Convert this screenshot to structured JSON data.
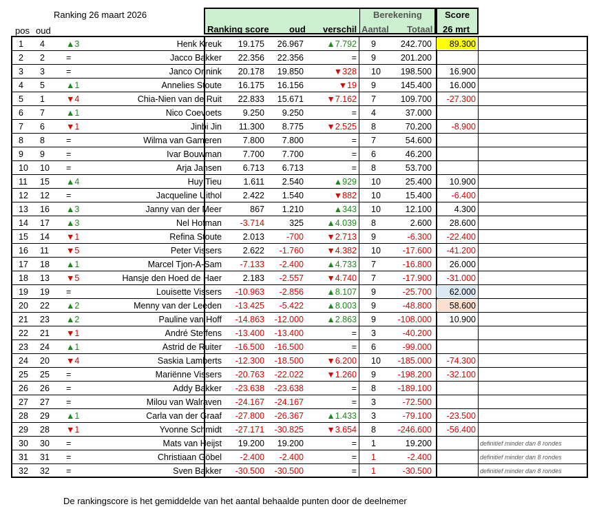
{
  "header": {
    "title": "Ranking  26 maart 2026",
    "pos": "pos",
    "oud": "oud",
    "ranking_score": "Ranking score",
    "oud2": "oud",
    "verschil": "verschil",
    "berekening": "Berekening",
    "aantal": "Aantal",
    "totaal": "Totaal",
    "score": "Score",
    "score_date": "26 mrt"
  },
  "colors": {
    "header_bg": "#ccefd0",
    "yellow": "#ffff00",
    "blue": "#dbe9f7",
    "peach": "#fbe0d0",
    "red": "#e00000",
    "green": "#1a8a1a"
  },
  "rows": [
    {
      "pos": "1",
      "oud": "4",
      "move": "▲3",
      "dir": "up",
      "name": "Henk Kreuk",
      "score": "26.967",
      "old": "19.175",
      "diff": "▲7.792",
      "diffdir": "up",
      "aantal": "9",
      "totaal": "242.700",
      "s26": "89.300",
      "hl": "yellow",
      "note": ""
    },
    {
      "pos": "2",
      "oud": "2",
      "move": "=",
      "dir": "eq",
      "name": "Jacco Bakker",
      "score": "22.356",
      "old": "22.356",
      "diff": "=",
      "diffdir": "eq",
      "aantal": "9",
      "totaal": "201.200",
      "s26": "",
      "hl": "",
      "note": ""
    },
    {
      "pos": "3",
      "oud": "3",
      "move": "=",
      "dir": "eq",
      "name": "Janco Onnink",
      "score": "19.850",
      "old": "20.178",
      "diff": "▼328",
      "diffdir": "down",
      "aantal": "10",
      "totaal": "198.500",
      "s26": "16.900",
      "hl": "",
      "note": ""
    },
    {
      "pos": "4",
      "oud": "5",
      "move": "▲1",
      "dir": "up",
      "name": "Annelies Stoute",
      "score": "16.156",
      "old": "16.175",
      "diff": "▼19",
      "diffdir": "down",
      "aantal": "9",
      "totaal": "145.400",
      "s26": "16.000",
      "hl": "",
      "note": ""
    },
    {
      "pos": "5",
      "oud": "1",
      "move": "▼4",
      "dir": "down",
      "name": "Chia-Nien van de Ruit",
      "score": "15.671",
      "old": "22.833",
      "diff": "▼7.162",
      "diffdir": "down",
      "aantal": "7",
      "totaal": "109.700",
      "s26": "-27.300",
      "hl": "",
      "note": ""
    },
    {
      "pos": "6",
      "oud": "7",
      "move": "▲1",
      "dir": "up",
      "name": "Nico Coevoets",
      "score": "9.250",
      "old": "9.250",
      "diff": "=",
      "diffdir": "eq",
      "aantal": "4",
      "totaal": "37.000",
      "s26": "",
      "hl": "",
      "note": ""
    },
    {
      "pos": "7",
      "oud": "6",
      "move": "▼1",
      "dir": "down",
      "name": "Jinbi Jin",
      "score": "8.775",
      "old": "11.300",
      "diff": "▼2.525",
      "diffdir": "down",
      "aantal": "8",
      "totaal": "70.200",
      "s26": "-8.900",
      "hl": "",
      "note": ""
    },
    {
      "pos": "8",
      "oud": "8",
      "move": "=",
      "dir": "eq",
      "name": "Wilma van Gameren",
      "score": "7.800",
      "old": "7.800",
      "diff": "=",
      "diffdir": "eq",
      "aantal": "7",
      "totaal": "54.600",
      "s26": "",
      "hl": "",
      "note": ""
    },
    {
      "pos": "9",
      "oud": "9",
      "move": "=",
      "dir": "eq",
      "name": "Ivar Bouwman",
      "score": "7.700",
      "old": "7.700",
      "diff": "=",
      "diffdir": "eq",
      "aantal": "6",
      "totaal": "46.200",
      "s26": "",
      "hl": "",
      "note": ""
    },
    {
      "pos": "10",
      "oud": "10",
      "move": "=",
      "dir": "eq",
      "name": "Arja Jansen",
      "score": "6.713",
      "old": "6.713",
      "diff": "=",
      "diffdir": "eq",
      "aantal": "8",
      "totaal": "53.700",
      "s26": "",
      "hl": "",
      "note": ""
    },
    {
      "pos": "11",
      "oud": "15",
      "move": "▲4",
      "dir": "up",
      "name": "Huy Tieu",
      "score": "2.540",
      "old": "1.611",
      "diff": "▲929",
      "diffdir": "up",
      "aantal": "10",
      "totaal": "25.400",
      "s26": "10.900",
      "hl": "",
      "note": ""
    },
    {
      "pos": "12",
      "oud": "12",
      "move": "=",
      "dir": "eq",
      "name": "Jacqueline Uithol",
      "score": "1.540",
      "old": "2.422",
      "diff": "▼882",
      "diffdir": "down",
      "aantal": "10",
      "totaal": "15.400",
      "s26": "-6.400",
      "hl": "",
      "note": ""
    },
    {
      "pos": "13",
      "oud": "16",
      "move": "▲3",
      "dir": "up",
      "name": "Janny van der Meer",
      "score": "1.210",
      "old": "867",
      "diff": "▲343",
      "diffdir": "up",
      "aantal": "10",
      "totaal": "12.100",
      "s26": "4.300",
      "hl": "",
      "note": ""
    },
    {
      "pos": "14",
      "oud": "17",
      "move": "▲3",
      "dir": "up",
      "name": "Nel Hofman",
      "score": "325",
      "old": "-3.714",
      "diff": "▲4.039",
      "diffdir": "up",
      "aantal": "8",
      "totaal": "2.600",
      "s26": "28.600",
      "hl": "",
      "note": ""
    },
    {
      "pos": "15",
      "oud": "14",
      "move": "▼1",
      "dir": "down",
      "name": "Refina Stoute",
      "score": "-700",
      "old": "2.013",
      "diff": "▼2.713",
      "diffdir": "down",
      "aantal": "9",
      "totaal": "-6.300",
      "s26": "-22.400",
      "hl": "",
      "note": ""
    },
    {
      "pos": "16",
      "oud": "11",
      "move": "▼5",
      "dir": "down",
      "name": "Peter Vissers",
      "score": "-1.760",
      "old": "2.622",
      "diff": "▼4.382",
      "diffdir": "down",
      "aantal": "10",
      "totaal": "-17.600",
      "s26": "-41.200",
      "hl": "",
      "note": ""
    },
    {
      "pos": "17",
      "oud": "18",
      "move": "▲1",
      "dir": "up",
      "name": "Marcel Tjon-A-Sam",
      "score": "-2.400",
      "old": "-7.133",
      "diff": "▲4.733",
      "diffdir": "up",
      "aantal": "7",
      "totaal": "-16.800",
      "s26": "26.000",
      "hl": "",
      "note": ""
    },
    {
      "pos": "18",
      "oud": "13",
      "move": "▼5",
      "dir": "down",
      "name": "Hansje den Hoed de Haer",
      "score": "-2.557",
      "old": "2.183",
      "diff": "▼4.740",
      "diffdir": "down",
      "aantal": "7",
      "totaal": "-17.900",
      "s26": "-31.000",
      "hl": "",
      "note": ""
    },
    {
      "pos": "19",
      "oud": "19",
      "move": "=",
      "dir": "eq",
      "name": "Louisette Vissers",
      "score": "-2.856",
      "old": "-10.963",
      "diff": "▲8.107",
      "diffdir": "up",
      "aantal": "9",
      "totaal": "-25.700",
      "s26": "62.000",
      "hl": "blue",
      "note": ""
    },
    {
      "pos": "20",
      "oud": "22",
      "move": "▲2",
      "dir": "up",
      "name": "Menny van der Leeden",
      "score": "-5.422",
      "old": "-13.425",
      "diff": "▲8.003",
      "diffdir": "up",
      "aantal": "9",
      "totaal": "-48.800",
      "s26": "58.600",
      "hl": "peach",
      "note": ""
    },
    {
      "pos": "21",
      "oud": "23",
      "move": "▲2",
      "dir": "up",
      "name": "Pauline van Hoff",
      "score": "-12.000",
      "old": "-14.863",
      "diff": "▲2.863",
      "diffdir": "up",
      "aantal": "9",
      "totaal": "-108.000",
      "s26": "10.900",
      "hl": "",
      "note": ""
    },
    {
      "pos": "22",
      "oud": "21",
      "move": "▼1",
      "dir": "down",
      "name": "André Steffens",
      "score": "-13.400",
      "old": "-13.400",
      "diff": "=",
      "diffdir": "eq",
      "aantal": "3",
      "totaal": "-40.200",
      "s26": "",
      "hl": "",
      "note": ""
    },
    {
      "pos": "23",
      "oud": "24",
      "move": "▲1",
      "dir": "up",
      "name": "Astrid de Ruiter",
      "score": "-16.500",
      "old": "-16.500",
      "diff": "=",
      "diffdir": "eq",
      "aantal": "6",
      "totaal": "-99.000",
      "s26": "",
      "hl": "",
      "note": ""
    },
    {
      "pos": "24",
      "oud": "20",
      "move": "▼4",
      "dir": "down",
      "name": "Saskia Lamberts",
      "score": "-18.500",
      "old": "-12.300",
      "diff": "▼6.200",
      "diffdir": "down",
      "aantal": "10",
      "totaal": "-185.000",
      "s26": "-74.300",
      "hl": "",
      "note": ""
    },
    {
      "pos": "25",
      "oud": "25",
      "move": "=",
      "dir": "eq",
      "name": "Mariënne Vissers",
      "score": "-22.022",
      "old": "-20.763",
      "diff": "▼1.260",
      "diffdir": "down",
      "aantal": "9",
      "totaal": "-198.200",
      "s26": "-32.100",
      "hl": "",
      "note": ""
    },
    {
      "pos": "26",
      "oud": "26",
      "move": "=",
      "dir": "eq",
      "name": "Addy Bakker",
      "score": "-23.638",
      "old": "-23.638",
      "diff": "=",
      "diffdir": "eq",
      "aantal": "8",
      "totaal": "-189.100",
      "s26": "",
      "hl": "",
      "note": ""
    },
    {
      "pos": "27",
      "oud": "27",
      "move": "=",
      "dir": "eq",
      "name": "Milou van Walraven",
      "score": "-24.167",
      "old": "-24.167",
      "diff": "=",
      "diffdir": "eq",
      "aantal": "3",
      "totaal": "-72.500",
      "s26": "",
      "hl": "",
      "note": ""
    },
    {
      "pos": "28",
      "oud": "29",
      "move": "▲1",
      "dir": "up",
      "name": "Carla van der Graaf",
      "score": "-26.367",
      "old": "-27.800",
      "diff": "▲1.433",
      "diffdir": "up",
      "aantal": "3",
      "totaal": "-79.100",
      "s26": "-23.500",
      "hl": "",
      "note": ""
    },
    {
      "pos": "29",
      "oud": "28",
      "move": "▼1",
      "dir": "down",
      "name": "Yvonne Schmidt",
      "score": "-30.825",
      "old": "-27.171",
      "diff": "▼3.654",
      "diffdir": "down",
      "aantal": "8",
      "totaal": "-246.600",
      "s26": "-56.400",
      "hl": "",
      "note": ""
    },
    {
      "pos": "30",
      "oud": "30",
      "move": "=",
      "dir": "eq",
      "name": "Mats van Heijst",
      "score": "19.200",
      "old": "19.200",
      "diff": "=",
      "diffdir": "eq",
      "aantal": "1",
      "totaal": "19.200",
      "s26": "",
      "hl": "",
      "note": "definitief minder dan 8 rondes"
    },
    {
      "pos": "31",
      "oud": "31",
      "move": "=",
      "dir": "eq",
      "name": "Christiaan Göbel",
      "score": "-2.400",
      "old": "-2.400",
      "diff": "=",
      "diffdir": "eq",
      "aantal": "1",
      "totaal": "-2.400",
      "s26": "",
      "hl": "",
      "note": "definitief minder dan 8 rondes"
    },
    {
      "pos": "32",
      "oud": "32",
      "move": "=",
      "dir": "eq",
      "name": "Sven Bakker",
      "score": "-30.500",
      "old": "-30.500",
      "diff": "=",
      "diffdir": "eq",
      "aantal": "1",
      "totaal": "-30.500",
      "s26": "",
      "hl": "",
      "note": "definitief minder dan 8 rondes"
    }
  ],
  "footer": "De rankingscore is het gemiddelde van het aantal behaalde punten door de deelnemer"
}
